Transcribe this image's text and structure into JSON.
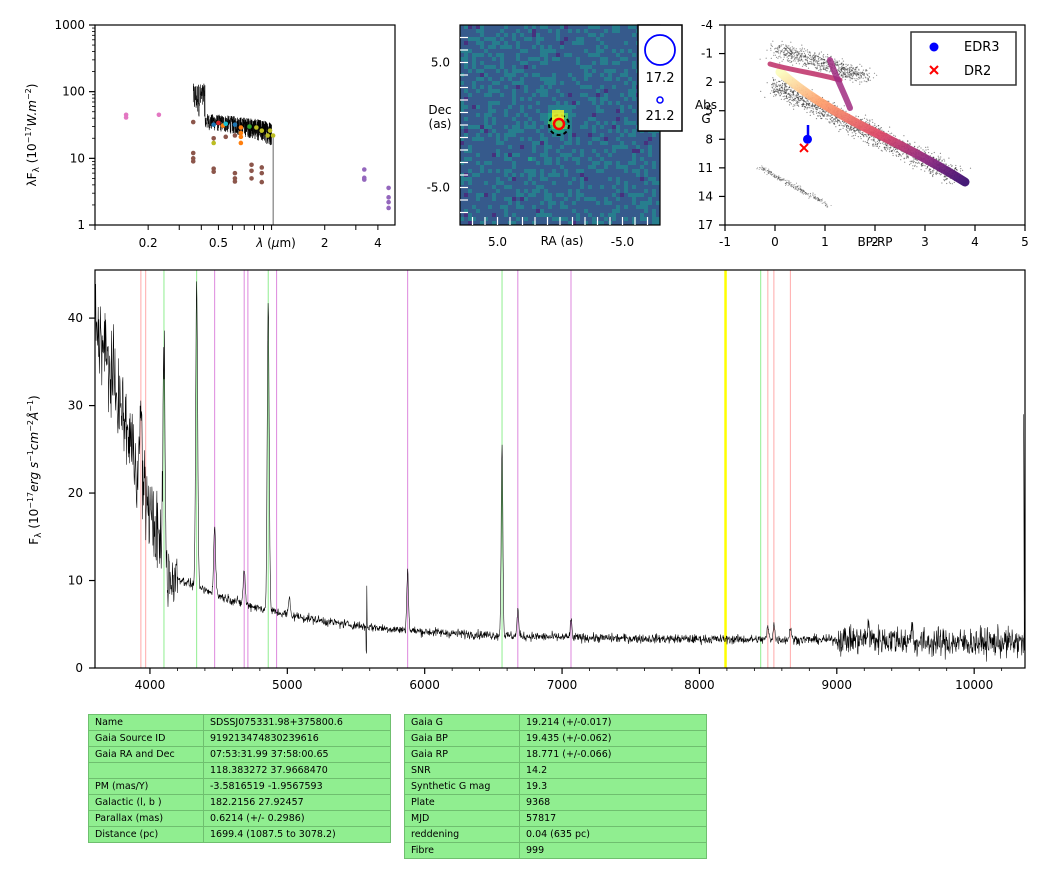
{
  "chart_data": [
    {
      "type": "scatter",
      "ylabel": "λF_λ (10^-17 W.m^-2)",
      "xlabel": "λ (μm)",
      "xscale": "log",
      "yscale": "log",
      "xlim": [
        0.1,
        5.0
      ],
      "ylim": [
        1,
        1000
      ],
      "xtick_labels": [
        "0.2",
        "0.5",
        "2",
        "4"
      ],
      "ytick_labels": [
        "1",
        "10",
        "100",
        "1000"
      ],
      "photometry": [
        {
          "x": 0.15,
          "y": 41,
          "color": "#e377c2"
        },
        {
          "x": 0.15,
          "y": 45,
          "color": "#e377c2"
        },
        {
          "x": 0.23,
          "y": 45,
          "color": "#e377c2"
        },
        {
          "x": 0.36,
          "y": 35,
          "color": "#8c564b"
        },
        {
          "x": 0.36,
          "y": 12,
          "color": "#8c564b"
        },
        {
          "x": 0.36,
          "y": 10,
          "color": "#8c564b"
        },
        {
          "x": 0.36,
          "y": 9,
          "color": "#8c564b"
        },
        {
          "x": 0.47,
          "y": 32,
          "color": "#1f77b4"
        },
        {
          "x": 0.47,
          "y": 20,
          "color": "#8c564b"
        },
        {
          "x": 0.47,
          "y": 17,
          "color": "#bcbd22"
        },
        {
          "x": 0.47,
          "y": 7,
          "color": "#8c564b"
        },
        {
          "x": 0.47,
          "y": 6.3,
          "color": "#8c564b"
        },
        {
          "x": 0.5,
          "y": 34,
          "color": "#d62728"
        },
        {
          "x": 0.53,
          "y": 31,
          "color": "#ff7f0e"
        },
        {
          "x": 0.55,
          "y": 33,
          "color": "#17becf"
        },
        {
          "x": 0.55,
          "y": 21,
          "color": "#8c564b"
        },
        {
          "x": 0.62,
          "y": 32,
          "color": "#1f77b4"
        },
        {
          "x": 0.62,
          "y": 22,
          "color": "#8c564b"
        },
        {
          "x": 0.62,
          "y": 6,
          "color": "#8c564b"
        },
        {
          "x": 0.62,
          "y": 5,
          "color": "#8c564b"
        },
        {
          "x": 0.62,
          "y": 4.5,
          "color": "#8c564b"
        },
        {
          "x": 0.67,
          "y": 29,
          "color": "#ff7f0e"
        },
        {
          "x": 0.67,
          "y": 24,
          "color": "#ff7f0e"
        },
        {
          "x": 0.67,
          "y": 21,
          "color": "#ff7f0e"
        },
        {
          "x": 0.67,
          "y": 17,
          "color": "#ff7f0e"
        },
        {
          "x": 0.75,
          "y": 30,
          "color": "#2ca02c"
        },
        {
          "x": 0.77,
          "y": 8,
          "color": "#8c564b"
        },
        {
          "x": 0.77,
          "y": 6.5,
          "color": "#8c564b"
        },
        {
          "x": 0.77,
          "y": 5,
          "color": "#8c564b"
        },
        {
          "x": 0.82,
          "y": 29,
          "color": "#bcbd22"
        },
        {
          "x": 0.88,
          "y": 26,
          "color": "#bcbd22"
        },
        {
          "x": 0.88,
          "y": 7.3,
          "color": "#8c564b"
        },
        {
          "x": 0.88,
          "y": 6,
          "color": "#8c564b"
        },
        {
          "x": 0.88,
          "y": 4.4,
          "color": "#8c564b"
        },
        {
          "x": 0.95,
          "y": 22,
          "color": "#bcbd22"
        },
        {
          "x": 0.98,
          "y": 26,
          "color": "#bcbd22"
        },
        {
          "x": 1.02,
          "y": 22,
          "color": "#bcbd22"
        },
        {
          "x": 3.35,
          "y": 6.8,
          "color": "#9467bd"
        },
        {
          "x": 3.35,
          "y": 5.1,
          "color": "#9467bd"
        },
        {
          "x": 3.35,
          "y": 4.8,
          "color": "#9467bd"
        },
        {
          "x": 4.6,
          "y": 3.6,
          "color": "#9467bd"
        },
        {
          "x": 4.6,
          "y": 2.6,
          "color": "#9467bd"
        },
        {
          "x": 4.6,
          "y": 2.2,
          "color": "#9467bd"
        },
        {
          "x": 4.6,
          "y": 1.8,
          "color": "#9467bd"
        }
      ]
    },
    {
      "type": "heatmap",
      "xlabel": "RA (as)",
      "ylabel": "Dec\n(as)",
      "xlim": [
        8.0,
        -8.0
      ],
      "ylim": [
        -8.0,
        8.0
      ],
      "xtick_labels": [
        "5.0",
        "-5.0"
      ],
      "ytick_labels": [
        "5.0",
        "-5.0"
      ],
      "legend": [
        "17.2",
        "21.2"
      ],
      "legend_position": "top-right"
    },
    {
      "type": "scatter",
      "xlabel": "BP-RP",
      "ylabel": "Abs\nG",
      "xlim": [
        -1,
        5
      ],
      "ylim": [
        17,
        -4
      ],
      "xtick_labels": [
        "-1",
        "0",
        "1",
        "2",
        "3",
        "4",
        "5"
      ],
      "ytick_labels": [
        "-4",
        "-1",
        "2",
        "5",
        "8",
        "11",
        "14",
        "17"
      ],
      "legend_position": "top-right",
      "series": [
        {
          "name": "EDR3",
          "points": [
            [
              0.65,
              8.0
            ]
          ],
          "color": "#0000ff"
        },
        {
          "name": "DR2",
          "points": [
            [
              0.58,
              8.9
            ]
          ],
          "color": "#ff0000"
        }
      ]
    },
    {
      "type": "line",
      "ylabel": "F_λ (10^-17 erg s^-1 cm^-2 Å^-1)",
      "xlim": [
        3600,
        10370
      ],
      "ylim": [
        0,
        45.5
      ],
      "xtick_labels": [
        "4000",
        "5000",
        "6000",
        "7000",
        "8000",
        "9000",
        "10000"
      ],
      "ytick_labels": [
        "0",
        "10",
        "20",
        "30",
        "40"
      ],
      "emission_features": [
        {
          "x": 3934,
          "h": 8
        },
        {
          "x": 4102,
          "h": 25
        },
        {
          "x": 4340,
          "h": 35
        },
        {
          "x": 4471,
          "h": 8
        },
        {
          "x": 4686,
          "h": 4
        },
        {
          "x": 4861,
          "h": 35
        },
        {
          "x": 5015,
          "h": 2
        },
        {
          "x": 5876,
          "h": 7
        },
        {
          "x": 6563,
          "h": 22
        },
        {
          "x": 6678,
          "h": 3
        },
        {
          "x": 7065,
          "h": 2
        },
        {
          "x": 8498,
          "h": 1.5
        },
        {
          "x": 8542,
          "h": 1.8
        },
        {
          "x": 8662,
          "h": 1.5
        },
        {
          "x": 9229,
          "h": 2
        },
        {
          "x": 9546,
          "h": 2.5
        }
      ],
      "reference_lines": [
        {
          "x": 3934,
          "color": "#ffaaaa"
        },
        {
          "x": 3969,
          "color": "#ffaaaa"
        },
        {
          "x": 4102,
          "color": "#90ee90"
        },
        {
          "x": 4340,
          "color": "#90ee90"
        },
        {
          "x": 4471,
          "color": "#dd88dd"
        },
        {
          "x": 4686,
          "color": "#dd88dd"
        },
        {
          "x": 4713,
          "color": "#dd88dd"
        },
        {
          "x": 4861,
          "color": "#90ee90"
        },
        {
          "x": 4922,
          "color": "#dd88dd"
        },
        {
          "x": 5876,
          "color": "#dd88dd"
        },
        {
          "x": 6563,
          "color": "#90ee90"
        },
        {
          "x": 6678,
          "color": "#dd88dd"
        },
        {
          "x": 7065,
          "color": "#dd88dd"
        },
        {
          "x": 8190,
          "color": "#ffff00"
        },
        {
          "x": 8446,
          "color": "#90ee90"
        },
        {
          "x": 8498,
          "color": "#ffaaaa"
        },
        {
          "x": 8542,
          "color": "#ffaaaa"
        },
        {
          "x": 8662,
          "color": "#ffaaaa"
        }
      ]
    }
  ],
  "table_left": [
    [
      "Name",
      "SDSSJ075331.98+375800.6"
    ],
    [
      "Gaia Source ID",
      "919213474830239616"
    ],
    [
      "Gaia RA and Dec",
      "07:53:31.99    37:58:00.65"
    ],
    [
      "",
      "118.383272    37.9668470"
    ],
    [
      "PM (mas/Y)",
      "-3.5816519    -1.9567593"
    ],
    [
      "Galactic (l, b )",
      "182.2156    27.92457"
    ],
    [
      "Parallax (mas)",
      "0.6214 (+/- 0.2986)"
    ],
    [
      "Distance (pc)",
      "1699.4 (1087.5 to 3078.2)"
    ]
  ],
  "table_right": [
    [
      "Gaia G",
      "19.214 (+/-0.017)"
    ],
    [
      "Gaia BP",
      "19.435 (+/-0.062)"
    ],
    [
      "Gaia RP",
      "18.771 (+/-0.066)"
    ],
    [
      "SNR",
      "14.2"
    ],
    [
      "Synthetic G mag",
      "19.3"
    ],
    [
      "Plate",
      "9368"
    ],
    [
      "MJD",
      "57817"
    ],
    [
      "reddening",
      "0.04 (635 pc)"
    ],
    [
      "Fibre",
      "999"
    ]
  ]
}
